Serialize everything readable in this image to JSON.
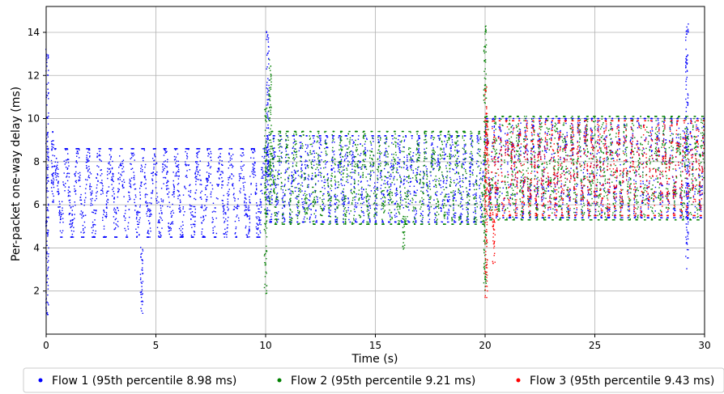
{
  "chart_data": {
    "type": "scatter",
    "xlabel": "Time (s)",
    "ylabel": "Per-packet one-way delay (ms)",
    "xlim": [
      0,
      30
    ],
    "ylim": [
      0,
      15.2
    ],
    "x_ticks": [
      0,
      5,
      10,
      15,
      20,
      25,
      30
    ],
    "y_ticks": [
      2,
      4,
      6,
      8,
      10,
      12,
      14
    ],
    "grid": true,
    "legend_position": "bottom",
    "series": [
      {
        "name": "Flow 1 (95th percentile 8.98 ms)",
        "color": "#0000ff",
        "start": 0,
        "end": 30,
        "spikes": [
          [
            0.05,
            0.9,
            13.3
          ],
          [
            0.3,
            6.0,
            9.4
          ],
          [
            4.35,
            0.9,
            4.2
          ],
          [
            10.1,
            5.5,
            14.2
          ],
          [
            29.2,
            3.0,
            14.4
          ]
        ],
        "bands": [
          {
            "start": 0.3,
            "end": 10.0,
            "low": 4.5,
            "high": 8.6,
            "period": 0.5
          },
          {
            "start": 10.0,
            "end": 20.0,
            "low": 5.2,
            "high": 9.2,
            "period": 0.3
          },
          {
            "start": 20.0,
            "end": 30.0,
            "low": 5.4,
            "high": 10.0,
            "period": 0.3
          }
        ]
      },
      {
        "name": "Flow 2 (95th percentile 9.21 ms)",
        "color": "#008000",
        "start": 10,
        "end": 30,
        "spikes": [
          [
            10.0,
            1.8,
            10.5
          ],
          [
            10.2,
            6.0,
            12.8
          ],
          [
            16.3,
            3.5,
            5.5
          ],
          [
            20.0,
            2.0,
            14.3
          ]
        ],
        "bands": [
          {
            "start": 10.2,
            "end": 20.0,
            "low": 5.1,
            "high": 9.4,
            "period": 0.35
          },
          {
            "start": 20.0,
            "end": 30.0,
            "low": 5.3,
            "high": 10.1,
            "period": 0.35
          }
        ]
      },
      {
        "name": "Flow 3 (95th percentile 9.43 ms)",
        "color": "#ff0000",
        "start": 20,
        "end": 30,
        "spikes": [
          [
            20.05,
            1.7,
            11.5
          ],
          [
            20.4,
            3.2,
            6.0
          ]
        ],
        "bands": [
          {
            "start": 20.0,
            "end": 30.0,
            "low": 5.5,
            "high": 9.9,
            "period": 0.3
          }
        ]
      }
    ]
  }
}
